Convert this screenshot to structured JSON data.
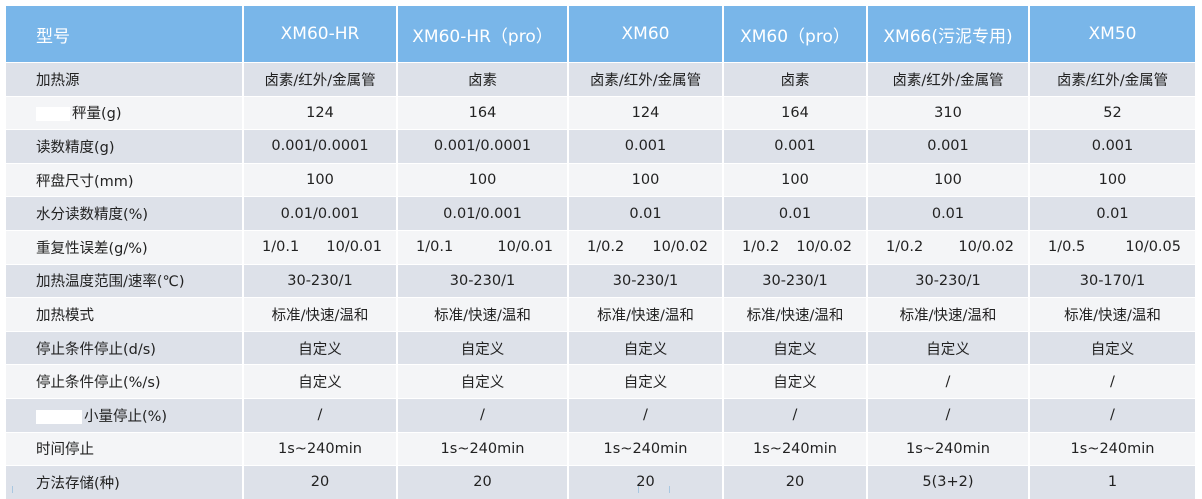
{
  "header": {
    "label": "型号",
    "models": [
      "XM60-HR",
      "XM60-HR（pro）",
      "XM60",
      "XM60（pro）",
      "XM66(污泥专用)",
      "XM50"
    ]
  },
  "rows": [
    {
      "label": "加热源",
      "values": [
        "卤素/红外/金属管",
        "卤素",
        "卤素/红外/金属管",
        "卤素",
        "卤素/红外/金属管",
        "卤素/红外/金属管"
      ]
    },
    {
      "label": "秤量(g)",
      "values": [
        "124",
        "164",
        "124",
        "164",
        "310",
        "52"
      ]
    },
    {
      "label": "读数精度(g)",
      "values": [
        "0.001/0.0001",
        "0.001/0.0001",
        "0.001",
        "0.001",
        "0.001",
        "0.001"
      ]
    },
    {
      "label": "秤盘尺寸(mm)",
      "values": [
        "100",
        "100",
        "100",
        "100",
        "100",
        "100"
      ]
    },
    {
      "label": "水分读数精度(%)",
      "values": [
        "0.01/0.001",
        "0.01/0.001",
        "0.01",
        "0.01",
        "0.01",
        "0.01"
      ]
    },
    {
      "label": "重复性误差(g/%)",
      "pairs": [
        [
          "1/0.1",
          "10/0.01"
        ],
        [
          "1/0.1",
          "10/0.01"
        ],
        [
          "1/0.2",
          "10/0.02"
        ],
        [
          "1/0.2",
          "10/0.02"
        ],
        [
          "1/0.2",
          "10/0.02"
        ],
        [
          "1/0.5",
          "10/0.05"
        ]
      ]
    },
    {
      "label": "加热温度范围/速率(℃)",
      "values": [
        "30-230/1",
        "30-230/1",
        "30-230/1",
        "30-230/1",
        "30-230/1",
        "30-170/1"
      ]
    },
    {
      "label": "加热模式",
      "values": [
        "标准/快速/温和",
        "标准/快速/温和",
        "标准/快速/温和",
        "标准/快速/温和",
        "标准/快速/温和",
        "标准/快速/温和"
      ]
    },
    {
      "label": "停止条件停止(d/s)",
      "values": [
        "自定义",
        "自定义",
        "自定义",
        "自定义",
        "自定义",
        "自定义"
      ]
    },
    {
      "label": "停止条件停止(%/s)",
      "values": [
        "自定义",
        "自定义",
        "自定义",
        "自定义",
        "/",
        "/"
      ]
    },
    {
      "label": "小量停止(%)",
      "values": [
        "/",
        "/",
        "/",
        "/",
        "/",
        "/"
      ]
    },
    {
      "label": "时间停止",
      "values": [
        "1s~240min",
        "1s~240min",
        "1s~240min",
        "1s~240min",
        "1s~240min",
        "1s~240min"
      ]
    },
    {
      "label": "方法存储(种)",
      "values": [
        "20",
        "20",
        "20",
        "20",
        "5(3+2)",
        "1"
      ]
    }
  ]
}
